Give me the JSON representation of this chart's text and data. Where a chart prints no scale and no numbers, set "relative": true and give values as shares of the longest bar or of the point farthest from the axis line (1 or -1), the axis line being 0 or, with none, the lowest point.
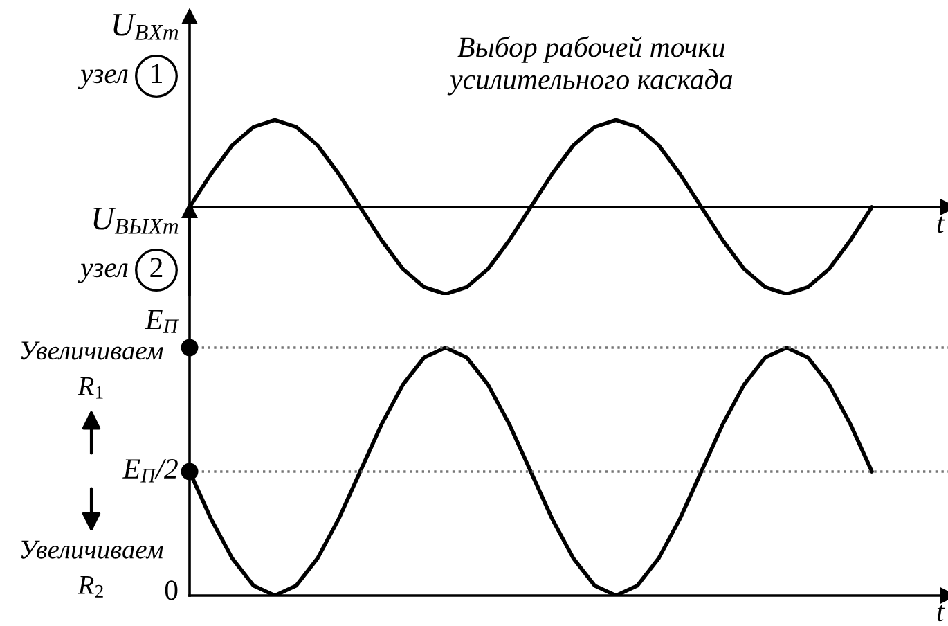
{
  "chart_data": [
    {
      "type": "line",
      "title": "Выбор рабочей точки\nусилительного каскада",
      "ylabel": "U$_{ВХm}$",
      "xlabel": "t",
      "relative": true,
      "categories": [
        null,
        null,
        null,
        null,
        null,
        null,
        null,
        null,
        null,
        null,
        null,
        null,
        null,
        null,
        null,
        null,
        null,
        null,
        null,
        null,
        null,
        null,
        null,
        null,
        null,
        null,
        null,
        null,
        null,
        null,
        null,
        null,
        null
      ],
      "series": [
        {
          "color": "#000000",
          "values": [
            0,
            0.38,
            0.71,
            0.92,
            1,
            0.92,
            0.71,
            0.38,
            0,
            -0.38,
            -0.71,
            -0.92,
            -1,
            -0.92,
            -0.71,
            -0.38,
            0,
            0.38,
            0.71,
            0.92,
            1,
            0.92,
            0.71,
            0.38,
            0,
            -0.38,
            -0.71,
            -0.92,
            -1,
            -0.92,
            -0.71,
            -0.38,
            0
          ]
        }
      ],
      "annotations": [
        "узел",
        "1"
      ]
    },
    {
      "type": "line",
      "ylabel": "U$_{ВЫХm}$",
      "xlabel": "t",
      "relative": true,
      "categories": [
        null,
        null,
        null,
        null,
        null,
        null,
        null,
        null,
        null,
        null,
        null,
        null,
        null,
        null,
        null,
        null,
        null,
        null,
        null,
        null,
        null,
        null,
        null,
        null,
        null,
        null,
        null,
        null,
        null,
        null,
        null,
        null,
        null
      ],
      "series": [
        {
          "color": "#000000",
          "values": [
            0.5,
            0.31,
            0.15,
            0.04,
            0,
            0.04,
            0.15,
            0.31,
            0.5,
            0.69,
            0.85,
            0.96,
            1,
            0.96,
            0.85,
            0.69,
            0.5,
            0.31,
            0.15,
            0.04,
            0,
            0.04,
            0.15,
            0.31,
            0.5,
            0.69,
            0.85,
            0.96,
            1,
            0.96,
            0.85,
            0.69,
            0.5
          ]
        },
        {
          "type": "scatter",
          "marker": "circle",
          "color": "#000000",
          "values": [
            1,
            null,
            null,
            null,
            null,
            null,
            null,
            null,
            null,
            null,
            null,
            null,
            null,
            null,
            null,
            null,
            null,
            null,
            null,
            null,
            null,
            null,
            null,
            null,
            null,
            null,
            null,
            null,
            null,
            null,
            null,
            null,
            null
          ]
        },
        {
          "type": "scatter",
          "marker": "circle",
          "color": "#000000",
          "values": [
            0.5,
            null,
            null,
            null,
            null,
            null,
            null,
            null,
            null,
            null,
            null,
            null,
            null,
            null,
            null,
            null,
            null,
            null,
            null,
            null,
            null,
            null,
            null,
            null,
            null,
            null,
            null,
            null,
            null,
            null,
            null,
            null,
            null
          ]
        }
      ],
      "ref_lines": [
        {
          "axis": "y",
          "value": 1,
          "color": "#777777",
          "line_style": "dotted",
          "label": "E$_{П}$"
        },
        {
          "axis": "y",
          "value": 0.5,
          "color": "#777777",
          "line_style": "dotted",
          "label": "E$_{П}$/2"
        }
      ],
      "annotations": [
        "узел",
        "2",
        "0",
        "Увеличиваем\nR$_{1}$",
        "Увеличиваем\nR$_{2}$"
      ]
    }
  ]
}
